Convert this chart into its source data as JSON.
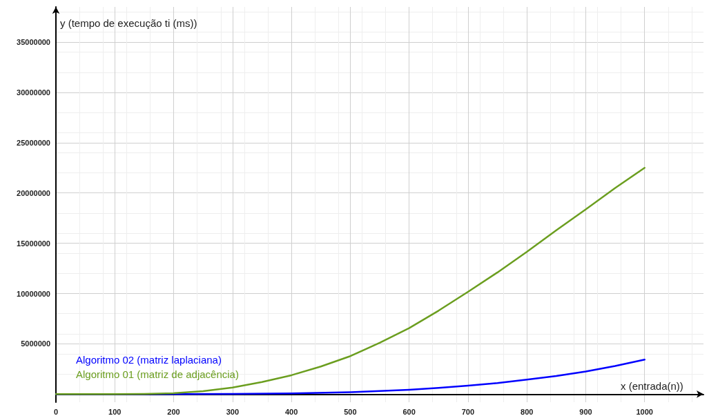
{
  "chart_data": {
    "type": "line",
    "xlabel": "x (entrada(n))",
    "ylabel": "y (tempo de execução ti (ms))",
    "xlim": [
      0,
      1100
    ],
    "xticks": [
      0,
      100,
      200,
      300,
      400,
      500,
      600,
      700,
      800,
      900,
      1000
    ],
    "ylim": [
      -800000,
      38500000
    ],
    "yticks": [
      5000000,
      10000000,
      15000000,
      20000000,
      25000000,
      30000000,
      35000000
    ],
    "grid": true,
    "legend": "bottom left",
    "marker": "none",
    "line_style": "solid",
    "series": [
      {
        "name": "Algoritmo 02 (matriz laplaciana)",
        "color": "#0000ff",
        "x": [
          0,
          100,
          200,
          300,
          400,
          500,
          600,
          650,
          700,
          750,
          800,
          850,
          900,
          950,
          1000
        ],
        "values": [
          0,
          0,
          10000,
          30000,
          80000,
          200000,
          440000,
          620000,
          840000,
          1100000,
          1440000,
          1800000,
          2250000,
          2800000,
          3430000
        ]
      },
      {
        "name": "Algoritmo 01 (matriz de adjacência)",
        "color": "#6b9e1f",
        "x": [
          0,
          100,
          150,
          200,
          250,
          300,
          350,
          400,
          450,
          500,
          550,
          600,
          650,
          700,
          750,
          800,
          850,
          900,
          950,
          1000
        ],
        "values": [
          0,
          0,
          20000,
          100000,
          300000,
          660000,
          1200000,
          1880000,
          2750000,
          3780000,
          5100000,
          6560000,
          8300000,
          10170000,
          12100000,
          14150000,
          16300000,
          18370000,
          20500000,
          22500000
        ]
      }
    ]
  }
}
